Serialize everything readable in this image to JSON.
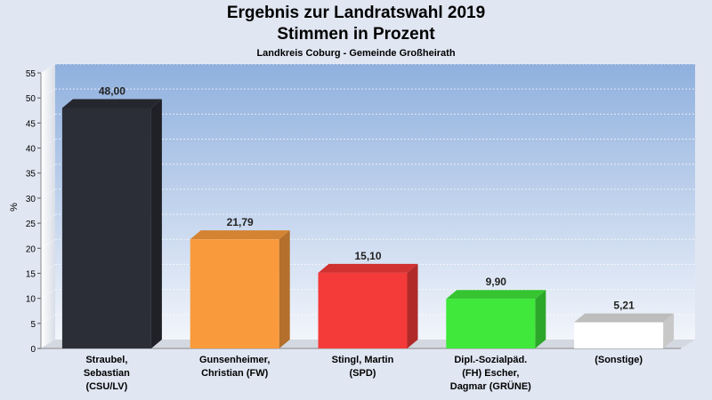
{
  "chart_data": {
    "type": "bar",
    "title": "Ergebnis zur Landratswahl 2019",
    "subtitle_main": "Stimmen in Prozent",
    "subtitle": "Landkreis Coburg - Gemeinde Großheirath",
    "ylabel": "%",
    "ylim": [
      0,
      55
    ],
    "yticks": [
      "0",
      "5",
      "10",
      "15",
      "20",
      "25",
      "30",
      "35",
      "40",
      "45",
      "50",
      "55"
    ],
    "categories": [
      [
        "Straubel,",
        "Sebastian",
        "(CSU/LV)"
      ],
      [
        "Gunsenheimer,",
        "Christian (FW)"
      ],
      [
        "Stingl, Martin",
        "(SPD)"
      ],
      [
        "Dipl.-Sozialpäd.",
        "(FH) Escher,",
        "Dagmar (GRÜNE)"
      ],
      [
        "(Sonstige)"
      ]
    ],
    "values": [
      48.0,
      21.79,
      15.1,
      9.9,
      5.21
    ],
    "value_labels": [
      "48,00",
      "21,79",
      "15,10",
      "9,90",
      "5,21"
    ],
    "colors": [
      "#2b2e36",
      "#f99a3c",
      "#f53a3a",
      "#3fe83a",
      "#ffffff"
    ],
    "grid": true
  }
}
